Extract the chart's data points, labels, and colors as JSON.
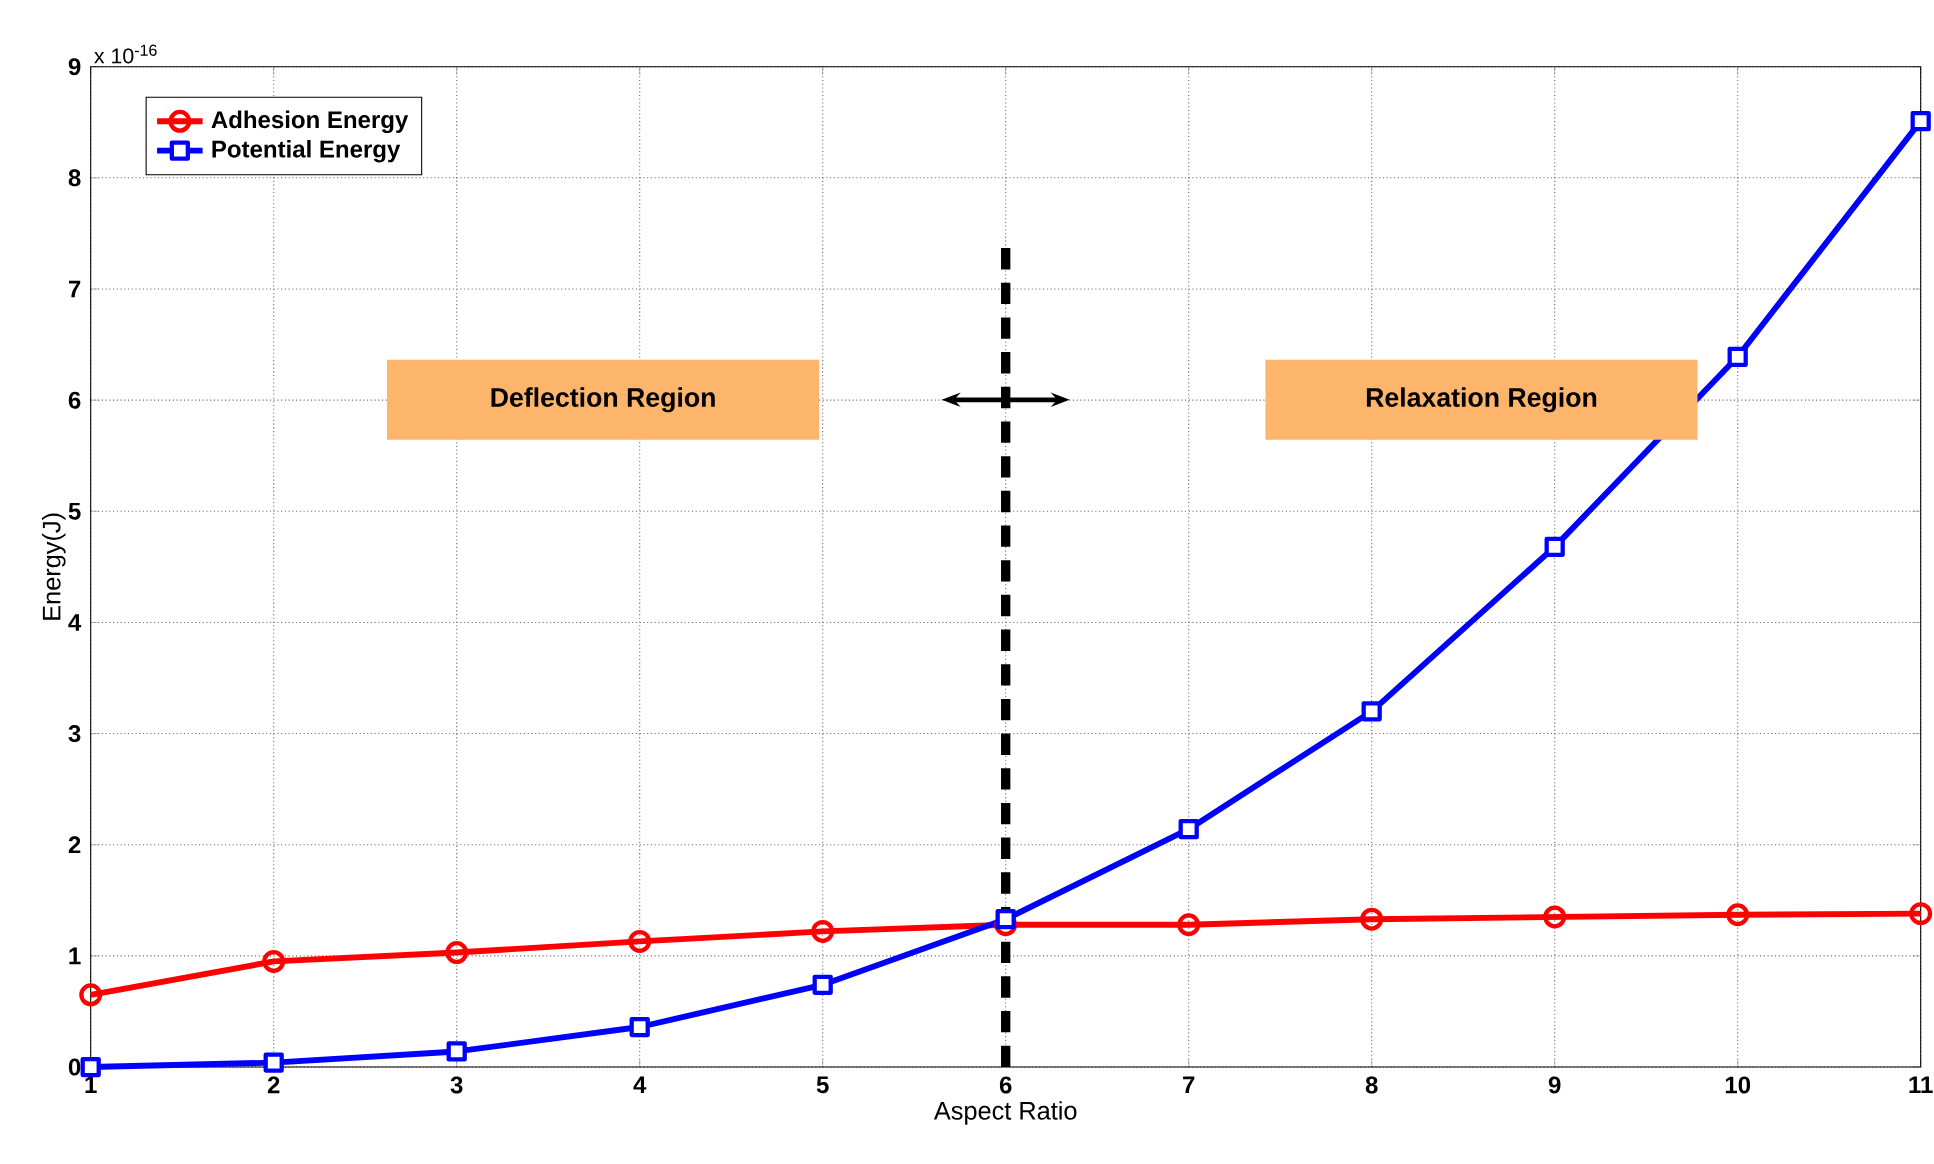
{
  "chart_data": {
    "type": "line",
    "xlabel": "Aspect Ratio",
    "ylabel": "Energy(J)",
    "x": [
      1,
      2,
      3,
      4,
      5,
      6,
      7,
      8,
      9,
      10,
      11
    ],
    "series": [
      {
        "name": "Adhesion Energy",
        "color": "#ff0000",
        "marker": "circle",
        "values": [
          0.65,
          0.95,
          1.03,
          1.13,
          1.22,
          1.28,
          1.28,
          1.33,
          1.35,
          1.37,
          1.38
        ]
      },
      {
        "name": "Potential Energy",
        "color": "#0000ff",
        "marker": "square",
        "values": [
          0.0,
          0.04,
          0.14,
          0.36,
          0.74,
          1.33,
          2.14,
          3.2,
          4.68,
          6.39,
          8.51
        ]
      }
    ],
    "xlim": [
      1,
      11
    ],
    "ylim": [
      0,
      9
    ],
    "xticks": [
      1,
      2,
      3,
      4,
      5,
      6,
      7,
      8,
      9,
      10,
      11
    ],
    "yticks": [
      0,
      1,
      2,
      3,
      4,
      5,
      6,
      7,
      8,
      9
    ],
    "grid": true,
    "legend": "top left",
    "line_style": "solid",
    "ref_lines": [
      {
        "axis": "x",
        "value": 6,
        "color": "#000000",
        "line_style": "dashed"
      }
    ],
    "annotations": [
      "x 10$^{-16}$",
      "Deflection Region",
      "Relaxation Region"
    ]
  }
}
